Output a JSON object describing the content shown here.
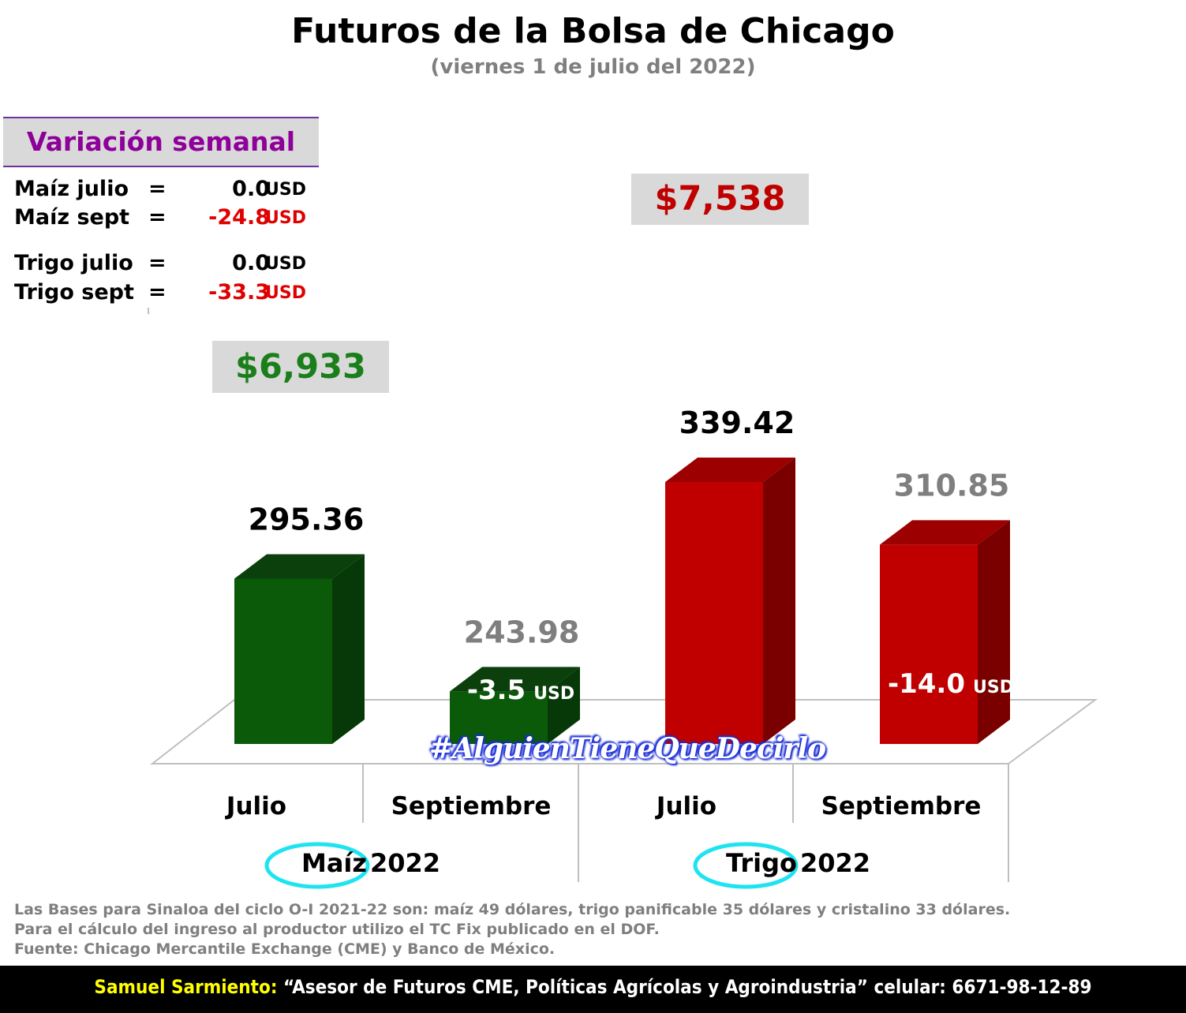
{
  "title": "Futuros de la Bolsa de Chicago",
  "subtitle": "(viernes 1 de julio del 2022)",
  "weekly_variation": {
    "header": "Variación semanal",
    "rows": [
      {
        "label": "Maíz julio",
        "eq": "=",
        "value": "0.0",
        "unit": "USD",
        "negative": false
      },
      {
        "label": "Maíz sept",
        "eq": "=",
        "value": "-24.8",
        "unit": "USD",
        "negative": true
      },
      {
        "label": "Trigo julio",
        "eq": "=",
        "value": "0.0",
        "unit": "USD",
        "negative": false
      },
      {
        "label": "Trigo sept",
        "eq": "=",
        "value": "-33.3",
        "unit": "USD",
        "negative": true
      }
    ]
  },
  "price_boxes": {
    "maiz": "$6,933",
    "trigo": "$7,538"
  },
  "colors": {
    "maiz_front": "#0a5a0a",
    "maiz_top": "#0b3f0b",
    "maiz_side": "#073807",
    "trigo_front": "#c00000",
    "trigo_top": "#9c0000",
    "trigo_side": "#7a0000",
    "title_purple": "#8e0099",
    "price_green": "#1a7f1a",
    "price_red": "#c00000",
    "label_gray": "#7f7f7f",
    "circle_cyan": "#1ee3f0"
  },
  "chart_data": {
    "type": "bar",
    "categories": [
      "Julio",
      "Septiembre",
      "Julio",
      "Septiembre"
    ],
    "groups": [
      {
        "name": "Maíz",
        "year": "2022",
        "categories": [
          "Julio",
          "Septiembre"
        ]
      },
      {
        "name": "Trigo",
        "year": "2022",
        "categories": [
          "Julio",
          "Septiembre"
        ]
      }
    ],
    "values": [
      295.36,
      243.98,
      339.42,
      310.85
    ],
    "value_labels": [
      "295.36",
      "243.98",
      "339.42",
      "310.85"
    ],
    "inner_labels": [
      "",
      "-3.5",
      "",
      "-14.0"
    ],
    "inner_unit": "USD",
    "ylim": [
      220,
      350
    ],
    "grid": false
  },
  "hashtag": "#AlguienTieneQueDecirlo",
  "footnotes": [
    "Las Bases para Sinaloa del ciclo O-I 2021-22 son: maíz 49 dólares, trigo panificable 35 dólares y cristalino 33 dólares.",
    "Para el cálculo del ingreso al productor utilizo el TC Fix publicado en el DOF.",
    "Fuente: Chicago Mercantile Exchange (CME) y Banco de México."
  ],
  "bottom_bar": {
    "name": "Samuel Sarmiento:",
    "rest": " “Asesor de Futuros CME, Políticas Agrícolas y Agroindustria”  celular: 6671-98-12-89"
  }
}
